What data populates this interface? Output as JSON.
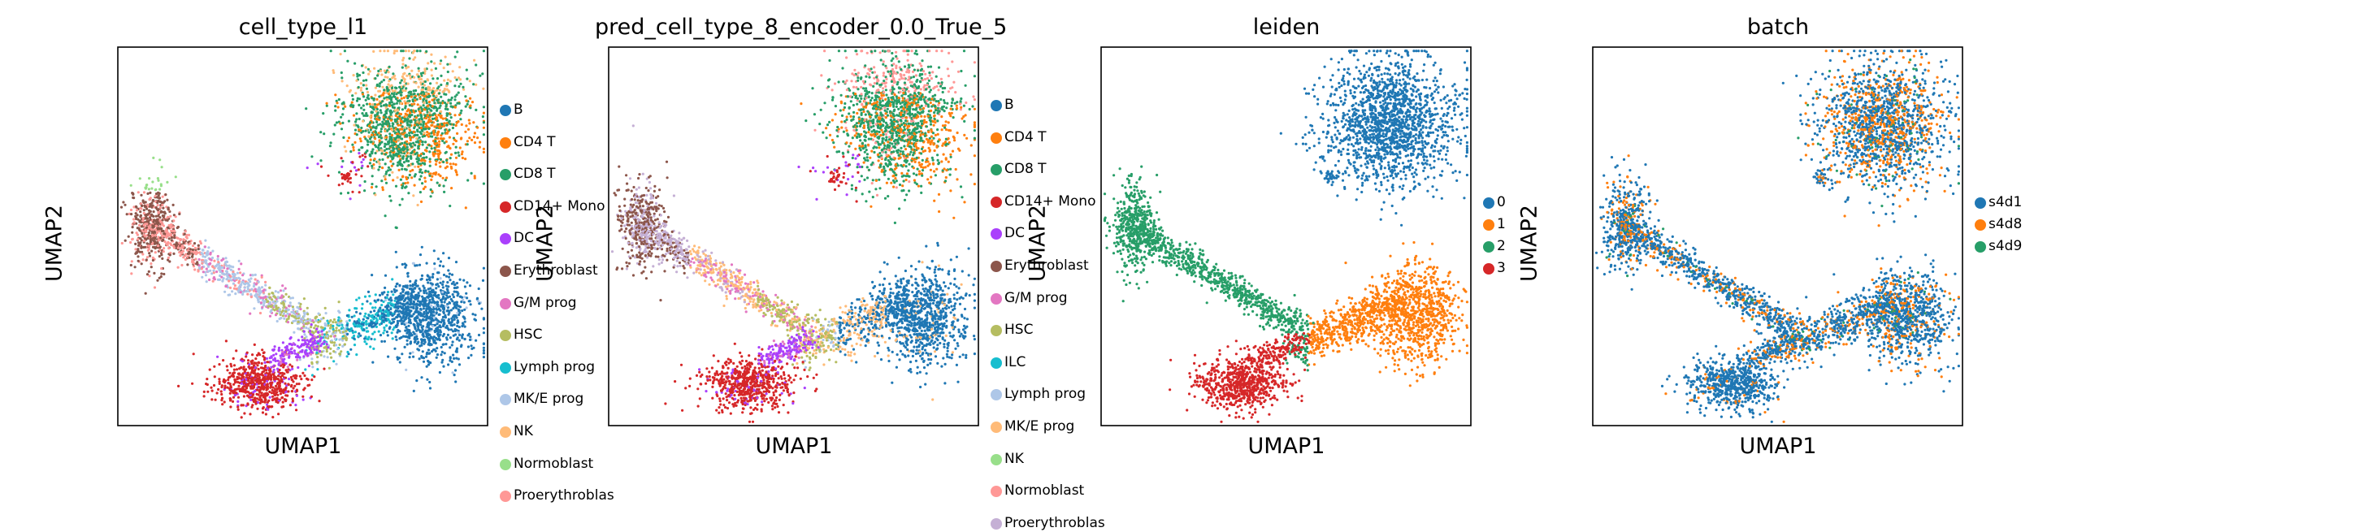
{
  "chart_data": [
    {
      "type": "scatter",
      "title": "cell_type_l1",
      "xlabel": "UMAP1",
      "ylabel": "UMAP2",
      "legend_placement": "right",
      "categories": [
        "B",
        "CD4 T",
        "CD8 T",
        "CD14+ Mono",
        "DC",
        "Erythroblast",
        "G/M prog",
        "HSC",
        "Lymph prog",
        "MK/E prog",
        "NK",
        "Normoblast",
        "Proerythroblast"
      ],
      "legend_labels": [
        "B",
        "CD4 T",
        "CD8 T",
        "CD14+ Mono",
        "DC",
        "Erythroblast",
        "G/M prog",
        "HSC",
        "Lymph prog",
        "MK/E prog",
        "NK",
        "Normoblast",
        "Proerythroblas"
      ],
      "colors": [
        "#1f77b4",
        "#ff7f0e",
        "#279e68",
        "#d62728",
        "#aa40fc",
        "#8c564b",
        "#e377c2",
        "#b5bd61",
        "#17becf",
        "#aec7e8",
        "#ffbb78",
        "#98df8a",
        "#ff9896"
      ]
    },
    {
      "type": "scatter",
      "title": "pred_cell_type_8_encoder_0.0_True_5",
      "xlabel": "UMAP1",
      "ylabel": "UMAP2",
      "legend_placement": "right",
      "categories": [
        "B",
        "CD4 T",
        "CD8 T",
        "CD14+ Mono",
        "DC",
        "Erythroblast",
        "G/M prog",
        "HSC",
        "ILC",
        "Lymph prog",
        "MK/E prog",
        "NK",
        "Normoblast",
        "Proerythroblast"
      ],
      "legend_labels": [
        "B",
        "CD4 T",
        "CD8 T",
        "CD14+ Mono",
        "DC",
        "Erythroblast",
        "G/M prog",
        "HSC",
        "ILC",
        "Lymph prog",
        "MK/E prog",
        "NK",
        "Normoblast",
        "Proerythroblas"
      ],
      "colors": [
        "#1f77b4",
        "#ff7f0e",
        "#279e68",
        "#d62728",
        "#aa40fc",
        "#8c564b",
        "#e377c2",
        "#b5bd61",
        "#17becf",
        "#aec7e8",
        "#ffbb78",
        "#98df8a",
        "#ff9896",
        "#c5b0d5"
      ]
    },
    {
      "type": "scatter",
      "title": "leiden",
      "xlabel": "UMAP1",
      "ylabel": "UMAP2",
      "legend_placement": "right",
      "categories": [
        "0",
        "1",
        "2",
        "3"
      ],
      "legend_labels": [
        "0",
        "1",
        "2",
        "3"
      ],
      "colors": [
        "#1f77b4",
        "#ff7f0e",
        "#279e68",
        "#d62728"
      ]
    },
    {
      "type": "scatter",
      "title": "batch",
      "xlabel": "UMAP1",
      "ylabel": "UMAP2",
      "legend_placement": "right",
      "categories": [
        "s4d1",
        "s4d8",
        "s4d9"
      ],
      "legend_labels": [
        "s4d1",
        "s4d8",
        "s4d9"
      ],
      "colors": [
        "#1f77b4",
        "#ff7f0e",
        "#279e68"
      ]
    }
  ]
}
